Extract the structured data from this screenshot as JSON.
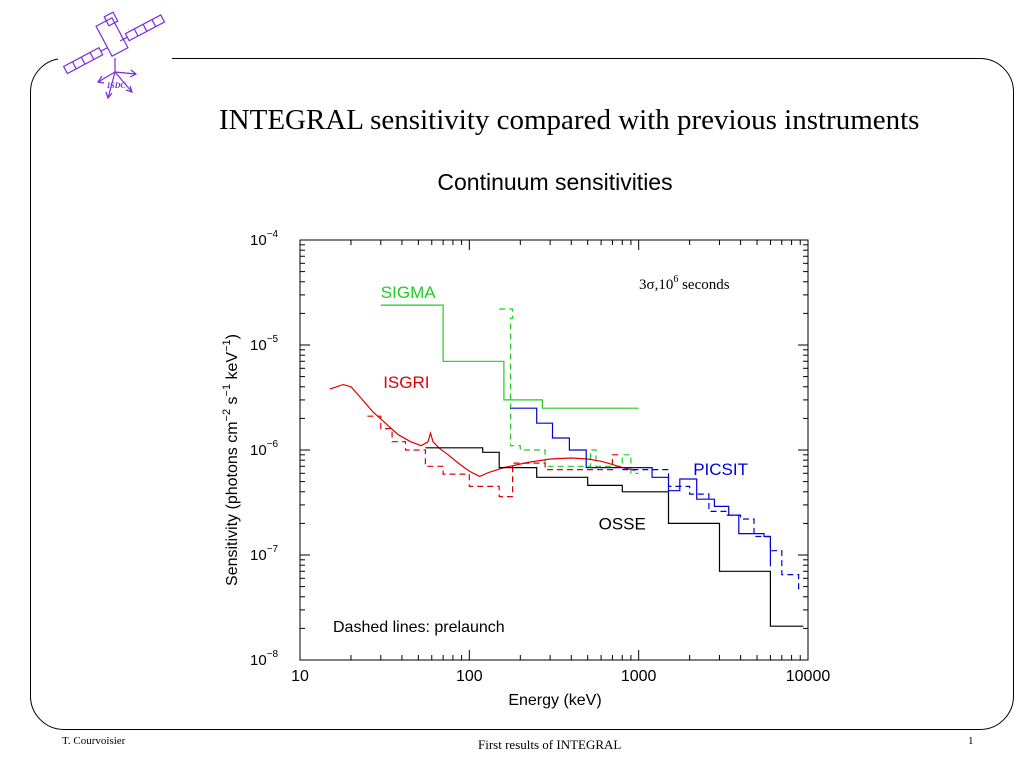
{
  "slide": {
    "title": "INTEGRAL sensitivity compared with previous instruments",
    "logo_text": "ISDC",
    "footer_left": "T. Courvoisier",
    "footer_center": "First results of INTEGRAL",
    "footer_right": "1"
  },
  "colors": {
    "SIGMA": "#22cc22",
    "ISGRI": "#e00000",
    "PICSIT": "#0000dd",
    "OSSE": "#000000",
    "logo": "#7a2be0"
  },
  "chart_data": {
    "type": "line",
    "title": "Continuum sensitivities",
    "xlabel": "Energy (keV)",
    "ylabel_parts": [
      "Sensitivity (photons cm",
      "−2",
      " s",
      "−1",
      " keV",
      "−1",
      ")"
    ],
    "x_scale": "log",
    "y_scale": "log",
    "xlim": [
      10,
      10000
    ],
    "ylim": [
      1e-08,
      0.0001
    ],
    "x_tick_labels": [
      "10",
      "100",
      "1000",
      "10000"
    ],
    "y_tick_labels": [
      {
        "base": "10",
        "exp": "−4"
      },
      {
        "base": "10",
        "exp": "−5"
      },
      {
        "base": "10",
        "exp": "−6"
      },
      {
        "base": "10",
        "exp": "−7"
      },
      {
        "base": "10",
        "exp": "−8"
      }
    ],
    "annotation_condition": {
      "main": "3σ,10",
      "exp": "6",
      "tail": " seconds"
    },
    "annotation_note": "Dashed lines: prelaunch",
    "series": [
      {
        "name": "SIGMA",
        "style": "solid",
        "points": [
          [
            30,
            2.4e-05
          ],
          [
            70,
            2.4e-05
          ],
          [
            70,
            7e-06
          ],
          [
            160,
            7e-06
          ],
          [
            160,
            3e-06
          ],
          [
            270,
            3e-06
          ],
          [
            270,
            2.5e-06
          ],
          [
            1000,
            2.5e-06
          ]
        ]
      },
      {
        "name": "SIGMA prelaunch",
        "style": "dashed",
        "points": [
          [
            150,
            2.2e-05
          ],
          [
            180,
            2.2e-05
          ],
          [
            180,
            1.8e-05
          ],
          [
            175,
            1.8e-05
          ],
          [
            175,
            1.1e-06
          ],
          [
            200,
            1.1e-06
          ],
          [
            200,
            1e-06
          ],
          [
            280,
            1e-06
          ],
          [
            280,
            7e-07
          ],
          [
            520,
            7e-07
          ],
          [
            520,
            1e-06
          ],
          [
            560,
            1e-06
          ],
          [
            560,
            7e-07
          ],
          [
            800,
            7e-07
          ],
          [
            800,
            9e-07
          ],
          [
            900,
            9e-07
          ],
          [
            900,
            6e-07
          ],
          [
            1000,
            6e-07
          ]
        ]
      },
      {
        "name": "ISGRI",
        "style": "solid",
        "points": [
          [
            15,
            3.8e-06
          ],
          [
            18,
            4.2e-06
          ],
          [
            20,
            4e-06
          ],
          [
            23,
            3.1e-06
          ],
          [
            27,
            2.3e-06
          ],
          [
            32,
            1.8e-06
          ],
          [
            38,
            1.4e-06
          ],
          [
            45,
            1.2e-06
          ],
          [
            52,
            1.1e-06
          ],
          [
            57,
            1.2e-06
          ],
          [
            59,
            1.45e-06
          ],
          [
            61,
            1.2e-06
          ],
          [
            66,
            1.05e-06
          ],
          [
            75,
            9e-07
          ],
          [
            88,
            7.3e-07
          ],
          [
            100,
            6.3e-07
          ],
          [
            115,
            5.6e-07
          ],
          [
            130,
            6.1e-07
          ],
          [
            160,
            6.8e-07
          ],
          [
            220,
            7.6e-07
          ],
          [
            300,
            8.2e-07
          ],
          [
            400,
            8.4e-07
          ],
          [
            500,
            8.2e-07
          ],
          [
            600,
            7.8e-07
          ],
          [
            700,
            7.3e-07
          ],
          [
            800,
            6.8e-07
          ],
          [
            950,
            6.4e-07
          ]
        ]
      },
      {
        "name": "ISGRI prelaunch",
        "style": "dashed",
        "points": [
          [
            25,
            2.1e-06
          ],
          [
            30,
            2.1e-06
          ],
          [
            30,
            1.6e-06
          ],
          [
            35,
            1.6e-06
          ],
          [
            35,
            1.2e-06
          ],
          [
            42,
            1.2e-06
          ],
          [
            42,
            1e-06
          ],
          [
            55,
            1e-06
          ],
          [
            55,
            7e-07
          ],
          [
            70,
            7e-07
          ],
          [
            70,
            5.9e-07
          ],
          [
            100,
            5.9e-07
          ],
          [
            100,
            4.5e-07
          ],
          [
            150,
            4.5e-07
          ],
          [
            150,
            3.6e-07
          ],
          [
            180,
            3.6e-07
          ],
          [
            180,
            7.5e-07
          ],
          [
            280,
            7.5e-07
          ],
          [
            280,
            6.5e-07
          ],
          [
            700,
            6.5e-07
          ],
          [
            700,
            9e-07
          ],
          [
            800,
            9e-07
          ]
        ]
      },
      {
        "name": "PICSIT",
        "style": "solid",
        "points": [
          [
            175,
            2.5e-06
          ],
          [
            250,
            2.5e-06
          ],
          [
            250,
            1.8e-06
          ],
          [
            310,
            1.8e-06
          ],
          [
            310,
            1.3e-06
          ],
          [
            390,
            1.3e-06
          ],
          [
            390,
            1e-06
          ],
          [
            490,
            1e-06
          ],
          [
            490,
            6.8e-07
          ],
          [
            1200,
            6.8e-07
          ],
          [
            1200,
            5.5e-07
          ],
          [
            1500,
            5.5e-07
          ],
          [
            1500,
            4.1e-07
          ],
          [
            1750,
            4.1e-07
          ],
          [
            1750,
            5.3e-07
          ],
          [
            2200,
            5.3e-07
          ],
          [
            2200,
            3.4e-07
          ],
          [
            2800,
            3.4e-07
          ],
          [
            2800,
            2.9e-07
          ],
          [
            3400,
            2.9e-07
          ],
          [
            3400,
            2.4e-07
          ],
          [
            3900,
            2.4e-07
          ],
          [
            3900,
            1.6e-07
          ],
          [
            5500,
            1.6e-07
          ],
          [
            5500,
            1.5e-07
          ],
          [
            6000,
            1.5e-07
          ],
          [
            6000,
            7.8e-08
          ]
        ]
      },
      {
        "name": "PICSIT prelaunch",
        "style": "dashed",
        "points": [
          [
            800,
            6.5e-07
          ],
          [
            1500,
            6.5e-07
          ],
          [
            1500,
            4.5e-07
          ],
          [
            2000,
            4.5e-07
          ],
          [
            2000,
            3.8e-07
          ],
          [
            2600,
            3.8e-07
          ],
          [
            2600,
            2.6e-07
          ],
          [
            3300,
            2.6e-07
          ],
          [
            3300,
            2.4e-07
          ],
          [
            4000,
            2.4e-07
          ],
          [
            4000,
            2.2e-07
          ],
          [
            4800,
            2.2e-07
          ],
          [
            4800,
            1.5e-07
          ],
          [
            6000,
            1.5e-07
          ],
          [
            6000,
            1.1e-07
          ],
          [
            7000,
            1.1e-07
          ],
          [
            7000,
            6.5e-08
          ],
          [
            8800,
            6.5e-08
          ],
          [
            8800,
            4.8e-08
          ],
          [
            9400,
            4.8e-08
          ]
        ]
      },
      {
        "name": "OSSE",
        "style": "solid",
        "points": [
          [
            55,
            1.05e-06
          ],
          [
            120,
            1.05e-06
          ],
          [
            120,
            9.5e-07
          ],
          [
            150,
            9.5e-07
          ],
          [
            150,
            6.8e-07
          ],
          [
            250,
            6.8e-07
          ],
          [
            250,
            5.5e-07
          ],
          [
            500,
            5.5e-07
          ],
          [
            500,
            4.6e-07
          ],
          [
            800,
            4.6e-07
          ],
          [
            800,
            4e-07
          ],
          [
            1500,
            4e-07
          ],
          [
            1500,
            2e-07
          ],
          [
            3000,
            2e-07
          ],
          [
            3000,
            7e-08
          ],
          [
            6000,
            7e-08
          ],
          [
            6000,
            2.1e-08
          ],
          [
            9400,
            2.1e-08
          ]
        ]
      }
    ],
    "series_labels": [
      "SIGMA",
      "ISGRI",
      "PICSIT",
      "OSSE"
    ],
    "grid": false
  }
}
